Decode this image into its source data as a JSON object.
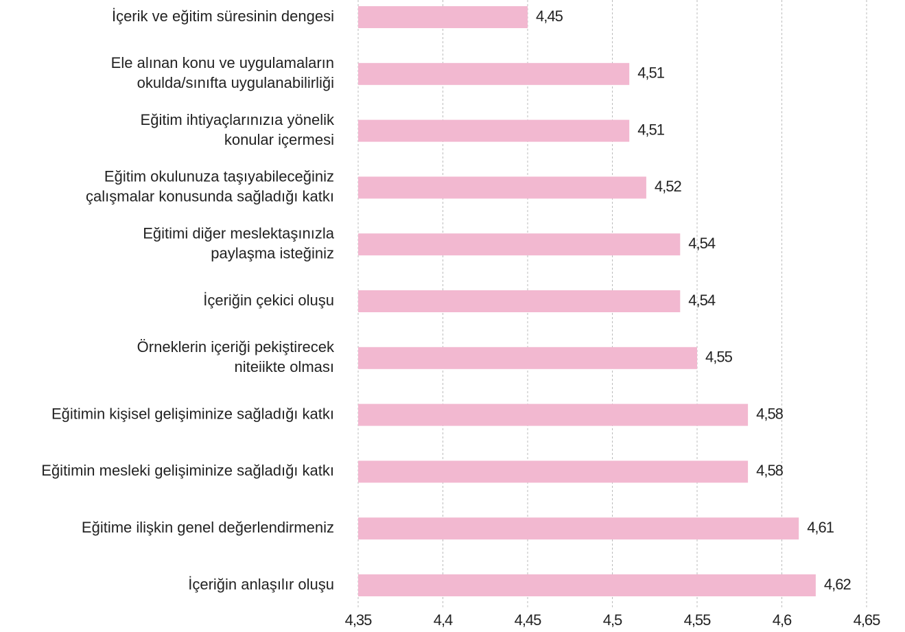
{
  "chart_data": {
    "type": "barh",
    "categories": [
      [
        "İçerik  ve eğitim süresinin dengesi"
      ],
      [
        "Ele alınan konu ve uygulamaların",
        "okulda/sınıfta uygulanabilirliği"
      ],
      [
        "Eğitim ihtiyaçlarınızıa yönelik",
        "konular içermesi"
      ],
      [
        "Eğitim okulunuza taşıyabileceğiniz",
        "çalışmalar konusunda sağladığı katkı"
      ],
      [
        "Eğitimi diğer meslektaşınızla",
        "paylaşma isteğiniz"
      ],
      [
        "İçeriğin çekici oluşu"
      ],
      [
        "Örneklerin içeriği pekiştirecek",
        "niteiikte olması"
      ],
      [
        "Eğitimin kişisel gelişiminize sağladığı katkı"
      ],
      [
        "Eğitimin mesleki gelişiminize sağladığı katkı"
      ],
      [
        "Eğitime ilişkin genel değerlendirmeniz"
      ],
      [
        "İçeriğin anlaşılır oluşu"
      ]
    ],
    "values": [
      4.45,
      4.51,
      4.51,
      4.52,
      4.54,
      4.54,
      4.55,
      4.58,
      4.58,
      4.61,
      4.62
    ],
    "value_labels": [
      "4,45",
      "4,51",
      "4,51",
      "4,52",
      "4,54",
      "4,54",
      "4,55",
      "4,58",
      "4,58",
      "4,61",
      "4,62"
    ],
    "color": "#f2b8d0",
    "xlim": [
      4.35,
      4.65
    ],
    "xticks": [
      {
        "value": 4.35,
        "label": "4,35"
      },
      {
        "value": 4.4,
        "label": "4,4"
      },
      {
        "value": 4.45,
        "label": "4,45"
      },
      {
        "value": 4.5,
        "label": "4,5"
      },
      {
        "value": 4.55,
        "label": "4,55"
      },
      {
        "value": 4.6,
        "label": "4,6"
      },
      {
        "value": 4.65,
        "label": "4,65"
      }
    ],
    "grid": true
  }
}
